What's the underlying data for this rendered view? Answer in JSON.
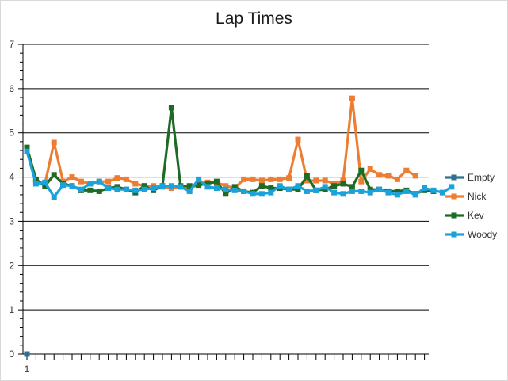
{
  "chart_data": {
    "type": "line",
    "title": "Lap Times",
    "xlabel": "",
    "ylabel": "",
    "ylim": [
      0,
      7
    ],
    "y_ticks": [
      0,
      1,
      2,
      3,
      4,
      5,
      6,
      7
    ],
    "x_tick_labels": [
      "1"
    ],
    "x_count": 45,
    "grid": true,
    "legend_position": "right",
    "series": [
      {
        "name": "Empty",
        "color": "#2f6f8f",
        "values": [
          0
        ]
      },
      {
        "name": "Nick",
        "color": "#ed7d31",
        "values": [
          4.65,
          3.9,
          3.85,
          4.78,
          3.9,
          4.0,
          3.9,
          3.85,
          3.9,
          3.9,
          3.98,
          3.95,
          3.85,
          3.8,
          3.8,
          3.78,
          3.75,
          3.78,
          3.75,
          3.83,
          3.88,
          3.88,
          3.8,
          3.75,
          3.95,
          3.95,
          3.92,
          3.95,
          3.95,
          3.98,
          4.85,
          3.92,
          3.92,
          3.92,
          3.85,
          3.92,
          5.78,
          3.9,
          4.18,
          4.05,
          4.03,
          3.95,
          4.15,
          4.03
        ]
      },
      {
        "name": "Kev",
        "color": "#1e6b26",
        "values": [
          4.67,
          3.95,
          3.8,
          4.05,
          3.85,
          3.8,
          3.7,
          3.7,
          3.68,
          3.75,
          3.78,
          3.72,
          3.65,
          3.8,
          3.7,
          3.8,
          5.57,
          3.8,
          3.8,
          3.82,
          3.85,
          3.9,
          3.62,
          3.78,
          3.68,
          3.65,
          3.8,
          3.75,
          3.75,
          3.72,
          3.72,
          4.02,
          3.7,
          3.72,
          3.8,
          3.85,
          3.78,
          4.15,
          3.72,
          3.72,
          3.68,
          3.68,
          3.7,
          3.62,
          3.7,
          3.68
        ]
      },
      {
        "name": "Woody",
        "color": "#1ba2db",
        "values": [
          4.58,
          3.85,
          3.88,
          3.55,
          3.82,
          3.8,
          3.72,
          3.85,
          3.9,
          3.75,
          3.72,
          3.72,
          3.7,
          3.72,
          3.75,
          3.8,
          3.8,
          3.78,
          3.68,
          3.95,
          3.78,
          3.75,
          3.72,
          3.7,
          3.68,
          3.62,
          3.62,
          3.65,
          3.8,
          3.72,
          3.8,
          3.68,
          3.7,
          3.78,
          3.65,
          3.62,
          3.68,
          3.68,
          3.65,
          3.72,
          3.65,
          3.6,
          3.68,
          3.6,
          3.75,
          3.7,
          3.65,
          3.78
        ]
      }
    ]
  }
}
